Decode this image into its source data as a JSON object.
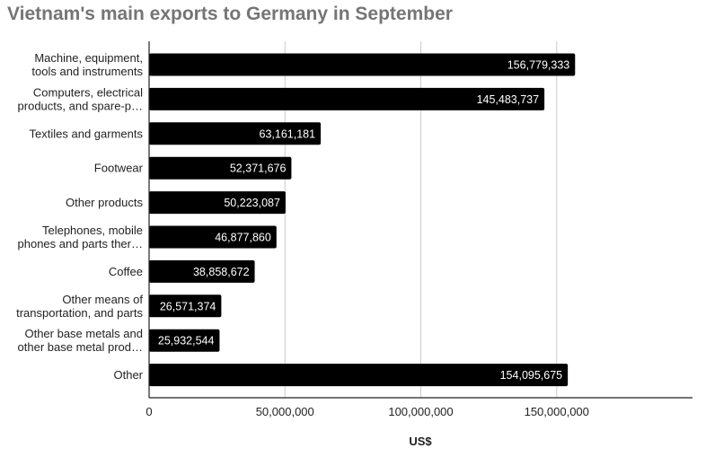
{
  "chart_data": {
    "type": "bar",
    "orientation": "horizontal",
    "title": "Vietnam's main exports to Germany in September",
    "xlabel": "US$",
    "ylabel": "",
    "xlim": [
      0,
      200000000
    ],
    "xticks": [
      0,
      50000000,
      100000000,
      150000000
    ],
    "xtick_labels": [
      "0",
      "50,000,000",
      "100,000,000",
      "150,000,000"
    ],
    "grid": true,
    "bar_color": "#000000",
    "categories": [
      [
        "Machine, equipment,",
        "tools and instruments"
      ],
      [
        "Computers, electrical",
        "products, and spare-p…"
      ],
      [
        "Textiles and garments"
      ],
      [
        "Footwear"
      ],
      [
        "Other products"
      ],
      [
        "Telephones, mobile",
        "phones and parts ther…"
      ],
      [
        "Coffee"
      ],
      [
        "Other means of",
        "transportation, and parts"
      ],
      [
        "Other base metals and",
        "other base metal prod…"
      ],
      [
        "Other"
      ]
    ],
    "values": [
      156779333,
      145483737,
      63161181,
      52371676,
      50223087,
      46877860,
      38858672,
      26571374,
      25932544,
      154095675
    ],
    "value_labels": [
      "156,779,333",
      "145,483,737",
      "63,161,181",
      "52,371,676",
      "50,223,087",
      "46,877,860",
      "38,858,672",
      "26,571,374",
      "25,932,544",
      "154,095,675"
    ]
  }
}
